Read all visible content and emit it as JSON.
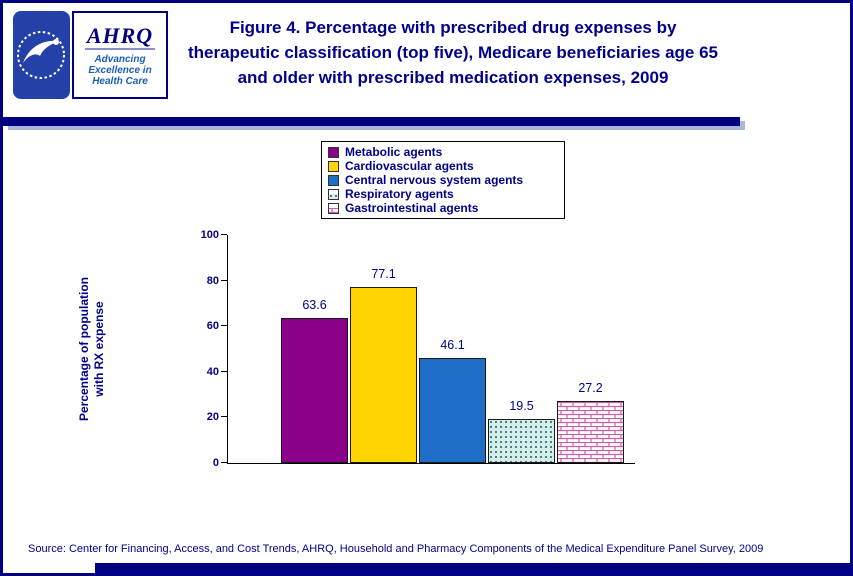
{
  "header": {
    "title_lines": [
      "Figure 4. Percentage with prescribed drug expenses by",
      "therapeutic classification (top five), Medicare beneficiaries age 65",
      "and older with prescribed medication expenses, 2009"
    ],
    "logo": {
      "abbrev": "AHRQ",
      "tagline_lines": [
        "Advancing",
        "Excellence in",
        "Health Care"
      ]
    }
  },
  "source_note": "Source: Center for Financing, Access, and Cost Trends, AHRQ, Household and Pharmacy Components of the Medical Expenditure Panel Survey, 2009",
  "chart_data": {
    "type": "bar",
    "title": "Figure 4. Percentage with prescribed drug expenses by therapeutic classification (top five), Medicare beneficiaries age 65 and older with prescribed medication expenses, 2009",
    "categories": [
      "Metabolic agents",
      "Cardiovascular agents",
      "Central nervous system agents",
      "Respiratory agents",
      "Gastrointestinal agents"
    ],
    "values": [
      63.6,
      77.1,
      46.1,
      19.5,
      27.2
    ],
    "value_labels": [
      "63.6",
      "77.1",
      "46.1",
      "19.5",
      "27.2"
    ],
    "ylabel": "Percentage of population with RX expense",
    "xlabel": "",
    "ylim": [
      0,
      100
    ],
    "yticks": [
      0,
      20,
      40,
      60,
      80,
      100
    ],
    "grid": false,
    "legend_position": "top-center",
    "bar_styles": [
      {
        "type": "solid",
        "fill": "#8B008B"
      },
      {
        "type": "solid",
        "fill": "#FFD400"
      },
      {
        "type": "solid",
        "fill": "#1E6EC8"
      },
      {
        "type": "dots",
        "bg": "#D6EEE9",
        "dot": "#145E63"
      },
      {
        "type": "bricks",
        "bg": "#FFFFFF",
        "line": "#CC5FA5"
      }
    ],
    "accent_colors": {
      "navy": "#000080",
      "text": "#00008B"
    }
  }
}
